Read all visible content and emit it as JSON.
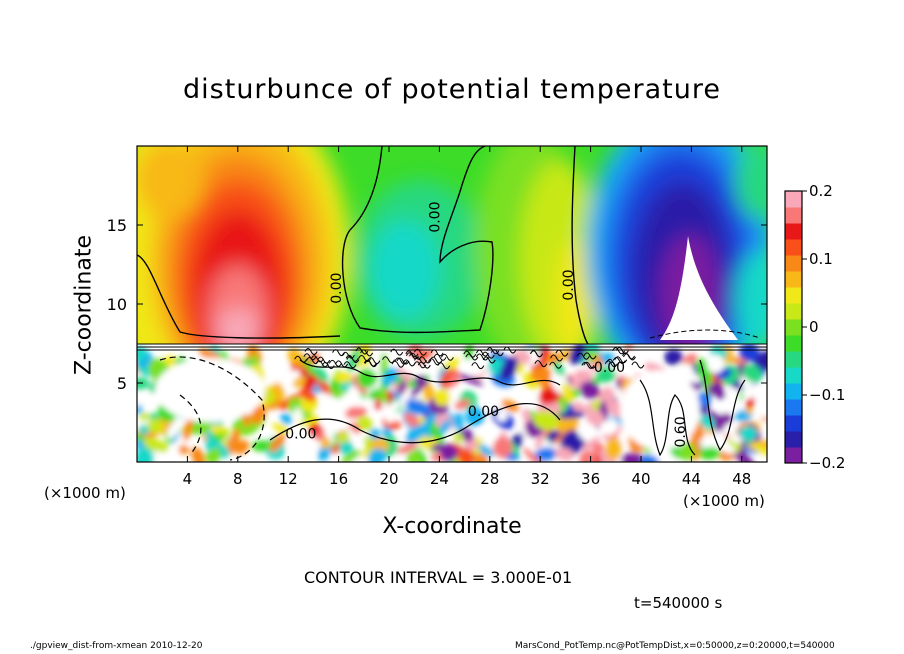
{
  "chart_data": {
    "type": "heatmap",
    "title": "disturbunce of potential temperature",
    "xlabel": "X-coordinate",
    "ylabel": "Z-coordinate",
    "x_unit_label": "(×1000 m)",
    "xlim": [
      0,
      50
    ],
    "ylim": [
      0,
      20
    ],
    "x_ticks": [
      4,
      8,
      12,
      16,
      20,
      24,
      28,
      32,
      36,
      40,
      44,
      48
    ],
    "y_ticks": [
      5,
      10,
      15
    ],
    "colorbar": {
      "range": [
        -0.2,
        0.2
      ],
      "ticks": [
        0.2,
        0.1,
        0,
        -0.1,
        -0.2
      ],
      "tick_labels": [
        "0.2",
        "0.1",
        "0",
        "−0.1",
        "−0.2"
      ],
      "colors": [
        "#7a1fa0",
        "#2a1fa8",
        "#1a3cd8",
        "#1a78f0",
        "#12b4f0",
        "#18d8c8",
        "#28d880",
        "#3cdc28",
        "#7ae020",
        "#c8e818",
        "#f0e818",
        "#f8b818",
        "#f88818",
        "#f85018",
        "#e81818",
        "#f87878",
        "#f8a8b8"
      ]
    },
    "contour_labels": [
      {
        "text": "0.00",
        "x": 16.2,
        "z": 11.0,
        "rotate": -90
      },
      {
        "text": "0.00",
        "x": 24.0,
        "z": 15.5,
        "rotate": -90
      },
      {
        "text": "0.00",
        "x": 34.6,
        "z": 11.2,
        "rotate": -90
      },
      {
        "text": "0.00",
        "x": 37.5,
        "z": 5.7,
        "rotate": 0
      },
      {
        "text": "0.00",
        "x": 27.5,
        "z": 2.9,
        "rotate": 0
      },
      {
        "text": "0.00",
        "x": 13.0,
        "z": 1.5,
        "rotate": 0
      },
      {
        "text": "0.60",
        "x": 43.5,
        "z": 1.9,
        "rotate": -90
      }
    ],
    "contour_interval_text": "CONTOUR INTERVAL = 3.000E-01",
    "time_text": "t=540000 s"
  },
  "footer": {
    "left": "./gpview_dist-from-xmean  2010-12-20",
    "right": "MarsCond_PotTemp.nc@PotTempDist,x=0:50000,z=0:20000,t=540000"
  }
}
